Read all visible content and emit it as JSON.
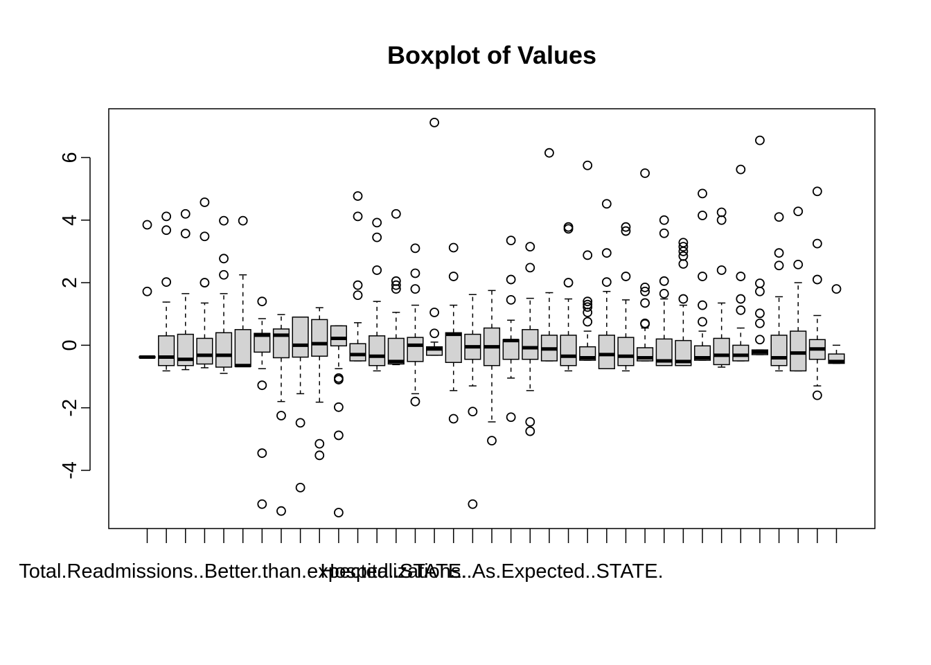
{
  "chart_data": {
    "type": "boxplot",
    "title": "Boxplot of Values",
    "xlabel": "",
    "ylabel": "",
    "ylim": [
      -5.86,
      7.56
    ],
    "yticks": [
      -4,
      -2,
      0,
      2,
      4,
      6
    ],
    "ytick_labels": [
      "-4",
      "-2",
      "0",
      "2",
      "4",
      "6"
    ],
    "grid": false,
    "legend": "none",
    "colors": {
      "box_fill": "#d3d3d3",
      "stroke": "#000000",
      "background": "#ffffff"
    },
    "visible_category_labels": [
      {
        "index": 5,
        "label": "Total.Readmissions..Better.than.expected..STATE."
      },
      {
        "index": 18,
        "label": "Hospitalizations..As.Expected..STATE."
      }
    ],
    "boxes": [
      {
        "q1": -0.4,
        "median": -0.38,
        "q3": -0.36,
        "wlo": -0.4,
        "whi": -0.36,
        "outliers": [
          3.85,
          1.72
        ]
      },
      {
        "q1": -0.65,
        "median": -0.38,
        "q3": 0.3,
        "wlo": -0.82,
        "whi": 1.38,
        "outliers": [
          4.12,
          3.68,
          2.02
        ]
      },
      {
        "q1": -0.65,
        "median": -0.45,
        "q3": 0.35,
        "wlo": -0.78,
        "whi": 1.65,
        "outliers": [
          4.2,
          3.57
        ]
      },
      {
        "q1": -0.6,
        "median": -0.32,
        "q3": 0.22,
        "wlo": -0.72,
        "whi": 1.35,
        "outliers": [
          4.57,
          3.48,
          2.0
        ]
      },
      {
        "q1": -0.7,
        "median": -0.32,
        "q3": 0.4,
        "wlo": -0.9,
        "whi": 1.65,
        "outliers": [
          3.98,
          2.77,
          2.25
        ]
      },
      {
        "q1": -0.68,
        "median": -0.65,
        "q3": 0.5,
        "wlo": -0.68,
        "whi": 2.25,
        "outliers": [
          3.98
        ]
      },
      {
        "q1": -0.22,
        "median": 0.32,
        "q3": 0.38,
        "wlo": -0.75,
        "whi": 0.85,
        "outliers": [
          1.4,
          -1.28,
          -3.45,
          -5.08
        ]
      },
      {
        "q1": -0.4,
        "median": 0.32,
        "q3": 0.52,
        "wlo": -1.8,
        "whi": 0.98,
        "outliers": [
          -2.25,
          -5.3
        ]
      },
      {
        "q1": -0.38,
        "median": 0.0,
        "q3": 0.9,
        "wlo": -1.55,
        "whi": 0.9,
        "outliers": [
          -2.48,
          -4.55
        ]
      },
      {
        "q1": -0.35,
        "median": 0.05,
        "q3": 0.82,
        "wlo": -1.82,
        "whi": 1.2,
        "outliers": [
          -3.15,
          -3.52
        ]
      },
      {
        "q1": -0.02,
        "median": 0.22,
        "q3": 0.62,
        "wlo": -0.75,
        "whi": 0.62,
        "outliers": [
          -1.05,
          -1.1,
          -1.98,
          -2.88,
          -5.35
        ]
      },
      {
        "q1": -0.5,
        "median": -0.3,
        "q3": 0.05,
        "wlo": -0.5,
        "whi": 0.72,
        "outliers": [
          4.77,
          4.12,
          1.92,
          1.6
        ]
      },
      {
        "q1": -0.65,
        "median": -0.35,
        "q3": 0.3,
        "wlo": -0.82,
        "whi": 1.4,
        "outliers": [
          3.92,
          3.45,
          2.4
        ]
      },
      {
        "q1": -0.6,
        "median": -0.52,
        "q3": 0.22,
        "wlo": -0.62,
        "whi": 1.05,
        "outliers": [
          4.2,
          2.05,
          1.92,
          1.8
        ]
      },
      {
        "q1": -0.52,
        "median": 0.0,
        "q3": 0.25,
        "wlo": -1.55,
        "whi": 1.28,
        "outliers": [
          3.1,
          2.3,
          1.8,
          -1.8
        ]
      },
      {
        "q1": -0.32,
        "median": -0.12,
        "q3": -0.05,
        "wlo": -0.32,
        "whi": 0.1,
        "outliers": [
          7.12,
          1.05,
          0.38
        ]
      },
      {
        "q1": -0.55,
        "median": 0.35,
        "q3": 0.4,
        "wlo": -1.45,
        "whi": 1.28,
        "outliers": [
          3.12,
          2.2,
          -2.35
        ]
      },
      {
        "q1": -0.45,
        "median": -0.05,
        "q3": 0.35,
        "wlo": -1.3,
        "whi": 1.62,
        "outliers": [
          -2.12,
          -5.08
        ]
      },
      {
        "q1": -0.65,
        "median": -0.05,
        "q3": 0.55,
        "wlo": -2.45,
        "whi": 1.75,
        "outliers": [
          -3.05
        ]
      },
      {
        "q1": -0.45,
        "median": 0.15,
        "q3": 0.18,
        "wlo": -1.05,
        "whi": 0.8,
        "outliers": [
          3.35,
          2.1,
          1.45,
          -2.3
        ]
      },
      {
        "q1": -0.45,
        "median": -0.08,
        "q3": 0.5,
        "wlo": -1.45,
        "whi": 1.5,
        "outliers": [
          3.15,
          2.48,
          -2.45,
          -2.75
        ]
      },
      {
        "q1": -0.5,
        "median": -0.12,
        "q3": 0.32,
        "wlo": -0.5,
        "whi": 1.68,
        "outliers": [
          6.15
        ]
      },
      {
        "q1": -0.65,
        "median": -0.35,
        "q3": 0.32,
        "wlo": -0.82,
        "whi": 1.48,
        "outliers": [
          3.78,
          3.72,
          2.0
        ]
      },
      {
        "q1": -0.48,
        "median": -0.4,
        "q3": -0.05,
        "wlo": -0.48,
        "whi": 0.45,
        "outliers": [
          5.75,
          2.88,
          1.4,
          1.3,
          1.22,
          1.05,
          0.75
        ]
      },
      {
        "q1": -0.75,
        "median": -0.3,
        "q3": 0.32,
        "wlo": -0.75,
        "whi": 1.72,
        "outliers": [
          4.52,
          2.95,
          2.02
        ]
      },
      {
        "q1": -0.65,
        "median": -0.35,
        "q3": 0.25,
        "wlo": -0.82,
        "whi": 1.45,
        "outliers": [
          3.78,
          3.65,
          2.2
        ]
      },
      {
        "q1": -0.5,
        "median": -0.4,
        "q3": -0.08,
        "wlo": -0.5,
        "whi": 0.55,
        "outliers": [
          5.5,
          1.85,
          1.72,
          1.35,
          0.7,
          0.68
        ]
      },
      {
        "q1": -0.65,
        "median": -0.5,
        "q3": 0.2,
        "wlo": -0.65,
        "whi": 1.48,
        "outliers": [
          4.0,
          3.58,
          2.05,
          1.65
        ]
      },
      {
        "q1": -0.65,
        "median": -0.52,
        "q3": 0.15,
        "wlo": -0.65,
        "whi": 1.28,
        "outliers": [
          3.28,
          3.15,
          3.0,
          2.85,
          2.6,
          1.48
        ]
      },
      {
        "q1": -0.48,
        "median": -0.4,
        "q3": -0.02,
        "wlo": -0.48,
        "whi": 0.45,
        "outliers": [
          4.85,
          4.15,
          2.2,
          1.28,
          0.75
        ]
      },
      {
        "q1": -0.62,
        "median": -0.32,
        "q3": 0.22,
        "wlo": -0.7,
        "whi": 1.35,
        "outliers": [
          4.25,
          4.0,
          2.4
        ]
      },
      {
        "q1": -0.5,
        "median": -0.32,
        "q3": 0.0,
        "wlo": -0.5,
        "whi": 0.55,
        "outliers": [
          5.62,
          2.2,
          1.48,
          1.12
        ]
      },
      {
        "q1": -0.3,
        "median": -0.22,
        "q3": -0.15,
        "wlo": -0.3,
        "whi": -0.15,
        "outliers": [
          6.55,
          1.98,
          1.72,
          1.02,
          0.7,
          0.18
        ]
      },
      {
        "q1": -0.65,
        "median": -0.4,
        "q3": 0.32,
        "wlo": -0.82,
        "whi": 1.55,
        "outliers": [
          4.1,
          2.95,
          2.55
        ]
      },
      {
        "q1": -0.82,
        "median": -0.25,
        "q3": 0.45,
        "wlo": -0.82,
        "whi": 2.0,
        "outliers": [
          4.28,
          2.58
        ]
      },
      {
        "q1": -0.45,
        "median": -0.12,
        "q3": 0.18,
        "wlo": -1.3,
        "whi": 0.95,
        "outliers": [
          4.92,
          3.25,
          2.1,
          -1.6
        ]
      },
      {
        "q1": -0.58,
        "median": -0.52,
        "q3": -0.28,
        "wlo": -0.58,
        "whi": 0.0,
        "outliers": [
          1.8
        ]
      }
    ]
  }
}
